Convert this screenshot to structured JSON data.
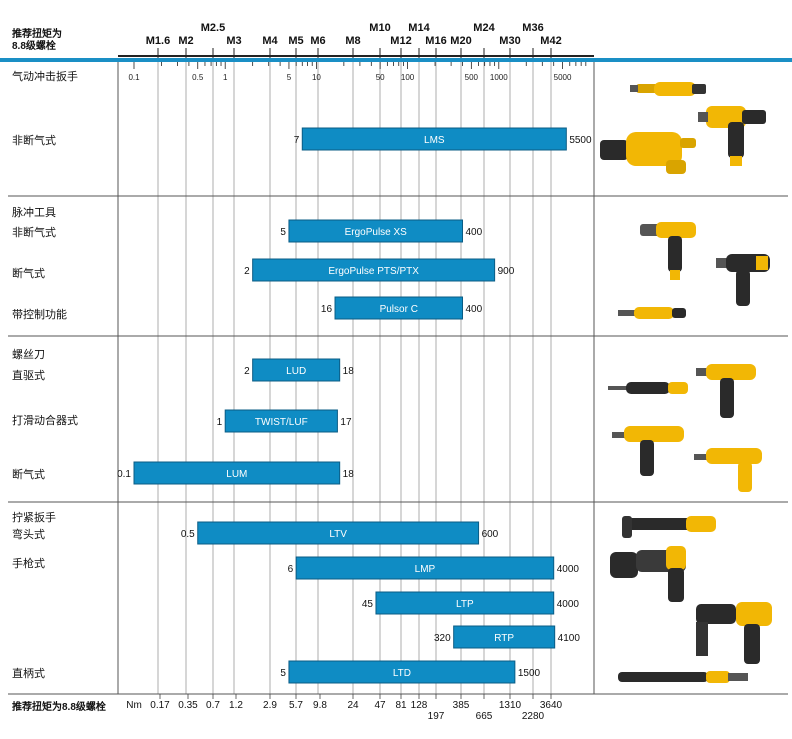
{
  "header": {
    "title_line1": "推荐扭矩为",
    "title_line2": "8.8级螺栓"
  },
  "footer": {
    "title": "推荐扭矩为8.8级螺栓",
    "unit": "Nm",
    "values": [
      "0.17",
      "0.35",
      "0.7",
      "1.2",
      "2.9",
      "5.7",
      "9.8",
      "24",
      "47",
      "81",
      "128",
      "197",
      "385",
      "665",
      "1310",
      "2280",
      "3640"
    ]
  },
  "groups": [
    {
      "name": "气动冲击扳手",
      "rows": [
        "非断气式"
      ]
    },
    {
      "name": "脉冲工具",
      "rows": [
        "非断气式",
        "断气式",
        "带控制功能"
      ]
    },
    {
      "name": "螺丝刀",
      "rows": [
        "直驱式",
        "打滑动合器式",
        "断气式"
      ]
    },
    {
      "name": "拧紧扳手",
      "rows": [
        "弯头式",
        "手枪式",
        "直柄式"
      ]
    }
  ],
  "chart_data": {
    "type": "bar",
    "orientation": "horizontal-range",
    "x_scale": "log",
    "x_unit": "Nm",
    "x_ticks": [
      "0.1",
      "0.5",
      "1",
      "5",
      "10",
      "50",
      "100",
      "500",
      "1000",
      "5000"
    ],
    "bolt_sizes": [
      "M1.6",
      "M2",
      "M2.5",
      "M3",
      "M4",
      "M5",
      "M6",
      "M8",
      "M10",
      "M12",
      "M14",
      "M16",
      "M20",
      "M24",
      "M30",
      "M36",
      "M42"
    ],
    "colors": {
      "bar": "#0f8cc4",
      "bar_border": "#0b5c85",
      "band": "#1a8fc5"
    },
    "series": [
      {
        "name": "LMS",
        "min": 7,
        "max": 5500,
        "min_label": "7",
        "max_label": "5500"
      },
      {
        "name": "ErgoPulse  XS",
        "min": 5,
        "max": 400,
        "min_label": "5",
        "max_label": "400"
      },
      {
        "name": "ErgoPulse PTS/PTX",
        "min": 2,
        "max": 900,
        "min_label": "2",
        "max_label": "900"
      },
      {
        "name": "Pulsor C",
        "min": 16,
        "max": 400,
        "min_label": "16",
        "max_label": "400"
      },
      {
        "name": "LUD",
        "min": 2,
        "max": 18,
        "min_label": "2",
        "max_label": "18"
      },
      {
        "name": "TWIST/LUF",
        "min": 1,
        "max": 17,
        "min_label": "1",
        "max_label": "17"
      },
      {
        "name": "LUM",
        "min": 0.1,
        "max": 18,
        "min_label": "0.1",
        "max_label": "18"
      },
      {
        "name": "LTV",
        "min": 0.5,
        "max": 600,
        "min_label": "0.5",
        "max_label": "600"
      },
      {
        "name": "LMP",
        "min": 6,
        "max": 4000,
        "min_label": "6",
        "max_label": "4000"
      },
      {
        "name": "LTP",
        "min": 45,
        "max": 4000,
        "min_label": "45",
        "max_label": "4000"
      },
      {
        "name": "RTP",
        "min": 320,
        "max": 4100,
        "min_label": "320",
        "max_label": "4100"
      },
      {
        "name": "LTD",
        "min": 5,
        "max": 1500,
        "min_label": "5",
        "max_label": "1500"
      }
    ]
  },
  "images": [
    {
      "name": "impact-wrench-photos"
    },
    {
      "name": "pulse-tool-photos"
    },
    {
      "name": "screwdriver-photos"
    },
    {
      "name": "nutrunner-photos"
    }
  ]
}
